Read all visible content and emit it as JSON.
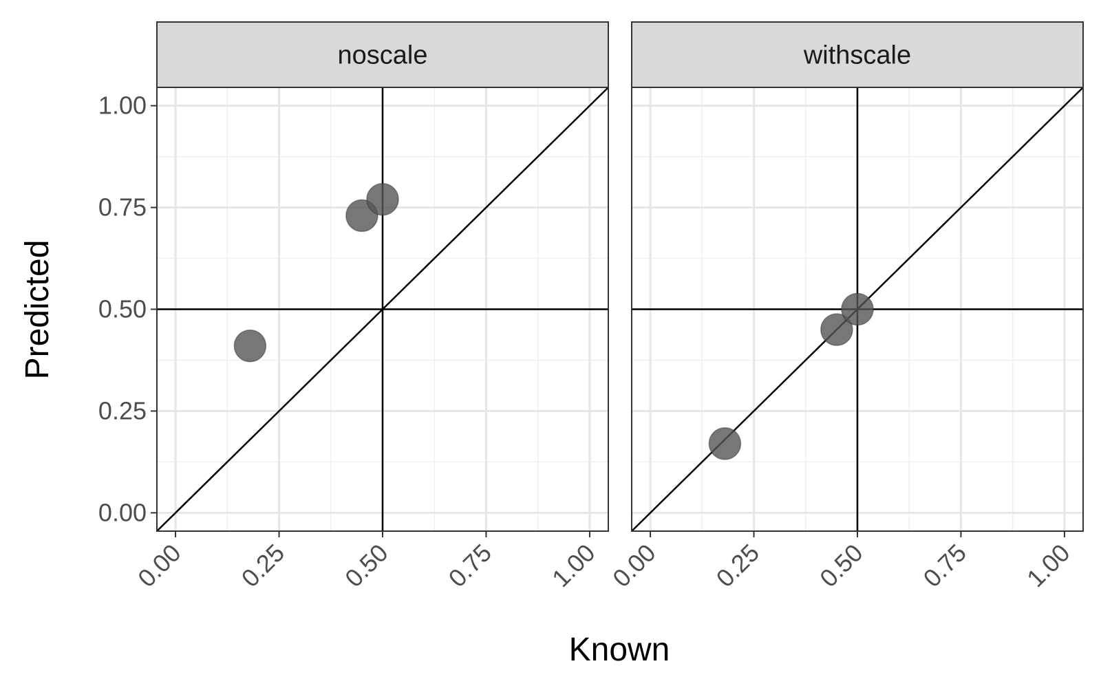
{
  "chart_data": {
    "type": "scatter",
    "xlabel": "Known",
    "ylabel": "Predicted",
    "xlim": [
      -0.045,
      1.045
    ],
    "ylim": [
      -0.045,
      1.045
    ],
    "x_ticks": [
      "0.00",
      "0.25",
      "0.50",
      "0.75",
      "1.00"
    ],
    "y_ticks": [
      "0.00",
      "0.25",
      "0.50",
      "0.75",
      "1.00"
    ],
    "grid": true,
    "reference_lines": {
      "hline": 0.5,
      "vline": 0.5,
      "abline": {
        "slope": 1,
        "intercept": 0
      }
    },
    "point_color": "#555555",
    "facets": [
      {
        "label": "noscale",
        "x": [
          0.18,
          0.45,
          0.5
        ],
        "y": [
          0.41,
          0.73,
          0.77
        ]
      },
      {
        "label": "withscale",
        "x": [
          0.18,
          0.45,
          0.5
        ],
        "y": [
          0.17,
          0.45,
          0.5
        ]
      }
    ]
  }
}
